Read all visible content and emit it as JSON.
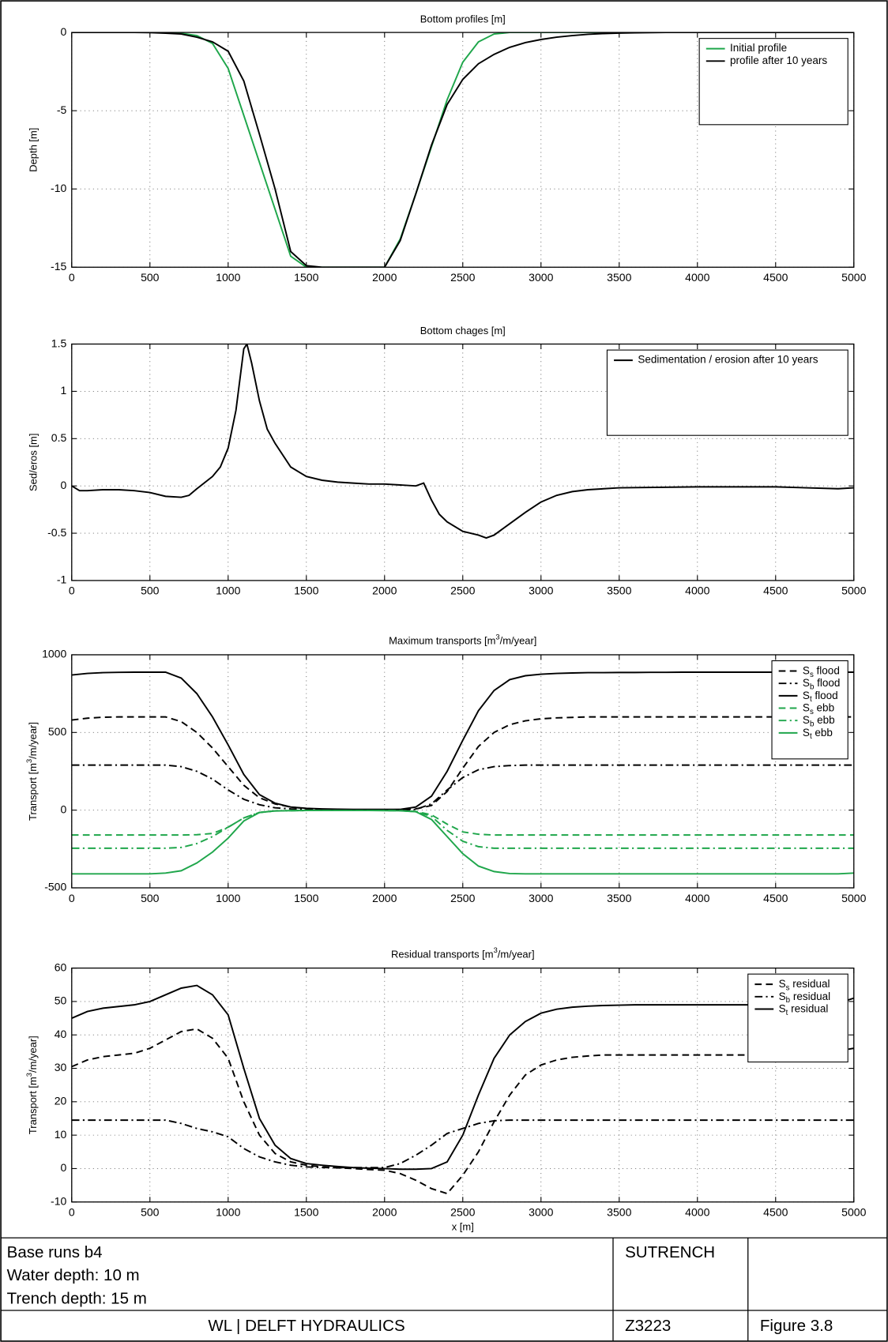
{
  "chart_data": [
    {
      "type": "line",
      "title": "Bottom profiles [m]",
      "ylabel": "Depth [m]",
      "x": [
        0,
        100,
        200,
        300,
        400,
        500,
        600,
        700,
        800,
        900,
        1000,
        1100,
        1200,
        1300,
        1400,
        1500,
        1600,
        1700,
        1800,
        1900,
        2000,
        2100,
        2200,
        2300,
        2400,
        2500,
        2600,
        2700,
        2800,
        2900,
        3000,
        3100,
        3200,
        3300,
        3400,
        3500,
        3600,
        3700,
        3800,
        3900,
        4000,
        4100,
        4200,
        4300,
        4400,
        4500,
        4600,
        4700,
        4800,
        4900,
        5000
      ],
      "series": [
        {
          "name": "Initial profile",
          "color": "#1fa64b",
          "linestyle": "solid",
          "values": [
            0,
            0,
            0,
            0,
            0,
            0,
            0,
            -0.05,
            -0.2,
            -0.7,
            -2.3,
            -5.3,
            -8.3,
            -11.3,
            -14.3,
            -15,
            -15,
            -15,
            -15,
            -15,
            -15,
            -13.2,
            -10.3,
            -7.3,
            -4.3,
            -1.9,
            -0.6,
            -0.1,
            0,
            0,
            0,
            0,
            0,
            0,
            0,
            0,
            0,
            0,
            0,
            0,
            0,
            0,
            0,
            0,
            0,
            0,
            0,
            0,
            0,
            0,
            0
          ]
        },
        {
          "name": "profile after 10 years",
          "color": "#000000",
          "linestyle": "solid",
          "values": [
            0,
            0,
            0,
            0,
            0,
            -0.01,
            -0.05,
            -0.1,
            -0.3,
            -0.6,
            -1.2,
            -3.1,
            -6.5,
            -10,
            -14,
            -14.9,
            -15,
            -15,
            -15,
            -15,
            -15,
            -13.3,
            -10.3,
            -7.2,
            -4.6,
            -3.0,
            -2.0,
            -1.4,
            -0.95,
            -0.65,
            -0.45,
            -0.3,
            -0.2,
            -0.12,
            -0.07,
            -0.04,
            -0.02,
            -0.01,
            0,
            0,
            0,
            0,
            0,
            0,
            0,
            0,
            0,
            0,
            0,
            0,
            0
          ]
        }
      ],
      "xlim": [
        0,
        5000
      ],
      "ylim": [
        -15,
        0
      ],
      "xticks": [
        0,
        500,
        1000,
        1500,
        2000,
        2500,
        3000,
        3500,
        4000,
        4500,
        5000
      ],
      "yticks": [
        -15,
        -10,
        -5,
        0
      ],
      "grid": true,
      "legend": "upper right"
    },
    {
      "type": "line",
      "title": "Bottom chages [m]",
      "ylabel": "Sed/eros [m]",
      "x": [
        0,
        50,
        100,
        200,
        300,
        400,
        500,
        600,
        700,
        750,
        800,
        900,
        950,
        1000,
        1050,
        1100,
        1120,
        1150,
        1200,
        1250,
        1300,
        1400,
        1500,
        1600,
        1700,
        1800,
        1900,
        2000,
        2100,
        2200,
        2250,
        2300,
        2350,
        2400,
        2500,
        2600,
        2650,
        2700,
        2800,
        2900,
        3000,
        3100,
        3200,
        3300,
        3500,
        4000,
        4500,
        4900,
        5000
      ],
      "series": [
        {
          "name": "Sedimentation / erosion after 10 years",
          "color": "#000000",
          "linestyle": "solid",
          "values": [
            0,
            -0.05,
            -0.05,
            -0.04,
            -0.04,
            -0.05,
            -0.07,
            -0.11,
            -0.12,
            -0.1,
            -0.03,
            0.1,
            0.2,
            0.4,
            0.8,
            1.45,
            1.5,
            1.3,
            0.9,
            0.6,
            0.45,
            0.2,
            0.1,
            0.06,
            0.04,
            0.03,
            0.02,
            0.02,
            0.01,
            0,
            0.03,
            -0.15,
            -0.3,
            -0.38,
            -0.48,
            -0.52,
            -0.55,
            -0.52,
            -0.4,
            -0.28,
            -0.17,
            -0.1,
            -0.06,
            -0.04,
            -0.02,
            -0.01,
            -0.01,
            -0.03,
            -0.02
          ]
        }
      ],
      "xlim": [
        0,
        5000
      ],
      "ylim": [
        -1,
        1.5
      ],
      "xticks": [
        0,
        500,
        1000,
        1500,
        2000,
        2500,
        3000,
        3500,
        4000,
        4500,
        5000
      ],
      "yticks": [
        -1,
        -0.5,
        0,
        0.5,
        1,
        1.5
      ],
      "grid": true,
      "legend": "upper right"
    },
    {
      "type": "line",
      "title": "Maximum transports [m3/m/year]",
      "ylabel": "Transport [m3/m/year]",
      "x": [
        0,
        100,
        200,
        300,
        400,
        500,
        600,
        700,
        800,
        900,
        1000,
        1100,
        1200,
        1300,
        1400,
        1500,
        1600,
        1700,
        1800,
        1900,
        2000,
        2100,
        2200,
        2300,
        2400,
        2500,
        2600,
        2700,
        2800,
        2900,
        3000,
        3100,
        3200,
        3300,
        3400,
        3500,
        3600,
        3700,
        3800,
        3900,
        4000,
        4100,
        4200,
        4300,
        4400,
        4500,
        4600,
        4700,
        4800,
        4900,
        5000
      ],
      "series": [
        {
          "name": "Ss flood",
          "color": "#000000",
          "linestyle": "dashed",
          "values": [
            580,
            592,
            598,
            600,
            600,
            600,
            600,
            570,
            500,
            400,
            280,
            160,
            80,
            40,
            20,
            10,
            6,
            4,
            3,
            3,
            3,
            4,
            8,
            30,
            120,
            270,
            410,
            500,
            550,
            575,
            588,
            594,
            597,
            600,
            600,
            600,
            600,
            600,
            600,
            600,
            600,
            600,
            600,
            600,
            600,
            600,
            600,
            600,
            600,
            600,
            600
          ]
        },
        {
          "name": "Sb flood",
          "color": "#000000",
          "linestyle": "dashdot",
          "values": [
            290,
            290,
            290,
            290,
            290,
            290,
            290,
            280,
            250,
            200,
            130,
            70,
            35,
            15,
            8,
            5,
            3,
            2,
            2,
            2,
            2,
            2,
            5,
            40,
            130,
            210,
            260,
            280,
            287,
            290,
            290,
            290,
            290,
            290,
            290,
            290,
            290,
            290,
            290,
            290,
            290,
            290,
            290,
            290,
            290,
            290,
            290,
            290,
            290,
            290,
            290
          ]
        },
        {
          "name": "St flood",
          "color": "#000000",
          "linestyle": "solid",
          "values": [
            870,
            880,
            885,
            887,
            888,
            888,
            888,
            850,
            750,
            600,
            420,
            230,
            100,
            45,
            20,
            12,
            8,
            6,
            5,
            5,
            5,
            5,
            20,
            90,
            250,
            450,
            640,
            770,
            840,
            865,
            875,
            880,
            883,
            885,
            885,
            886,
            886,
            887,
            887,
            888,
            888,
            888,
            888,
            888,
            888,
            888,
            888,
            888,
            888,
            888,
            888
          ]
        },
        {
          "name": "Ss ebb",
          "color": "#1fa64b",
          "linestyle": "dashed",
          "values": [
            -160,
            -160,
            -160,
            -160,
            -160,
            -160,
            -160,
            -160,
            -158,
            -150,
            -110,
            -50,
            -15,
            -5,
            -3,
            -2,
            -2,
            -2,
            -2,
            -2,
            -2,
            -3,
            -8,
            -30,
            -90,
            -140,
            -155,
            -160,
            -160,
            -160,
            -160,
            -160,
            -160,
            -160,
            -160,
            -160,
            -160,
            -160,
            -160,
            -160,
            -160,
            -160,
            -160,
            -160,
            -160,
            -160,
            -160,
            -160,
            -160,
            -160,
            -160
          ]
        },
        {
          "name": "Sb ebb",
          "color": "#1fa64b",
          "linestyle": "dashdot",
          "values": [
            -245,
            -245,
            -245,
            -245,
            -245,
            -245,
            -245,
            -240,
            -215,
            -170,
            -110,
            -50,
            -15,
            -5,
            -3,
            -2,
            -2,
            -2,
            -2,
            -2,
            -2,
            -3,
            -10,
            -40,
            -130,
            -200,
            -235,
            -245,
            -245,
            -245,
            -245,
            -245,
            -245,
            -245,
            -245,
            -245,
            -245,
            -245,
            -245,
            -245,
            -245,
            -245,
            -245,
            -245,
            -245,
            -245,
            -245,
            -245,
            -245,
            -245,
            -245
          ]
        },
        {
          "name": "St ebb",
          "color": "#1fa64b",
          "linestyle": "solid",
          "values": [
            -410,
            -410,
            -410,
            -410,
            -410,
            -410,
            -405,
            -390,
            -340,
            -270,
            -180,
            -70,
            -15,
            -5,
            -3,
            -2,
            -2,
            -2,
            -2,
            -2,
            -3,
            -4,
            -10,
            -60,
            -170,
            -280,
            -360,
            -395,
            -408,
            -410,
            -410,
            -410,
            -410,
            -410,
            -410,
            -410,
            -410,
            -410,
            -410,
            -410,
            -410,
            -410,
            -410,
            -410,
            -410,
            -410,
            -410,
            -410,
            -410,
            -410,
            -405
          ]
        }
      ],
      "xlim": [
        0,
        5000
      ],
      "ylim": [
        -500,
        1000
      ],
      "xticks": [
        0,
        500,
        1000,
        1500,
        2000,
        2500,
        3000,
        3500,
        4000,
        4500,
        5000
      ],
      "yticks": [
        -500,
        0,
        500,
        1000
      ],
      "grid": true,
      "legend": "upper right"
    },
    {
      "type": "line",
      "title": "Residual transports [m3/m/year]",
      "ylabel": "Transport [m3/m/year]",
      "xlabel": "x [m]",
      "x": [
        0,
        100,
        200,
        300,
        400,
        500,
        600,
        700,
        800,
        900,
        1000,
        1100,
        1200,
        1300,
        1400,
        1500,
        1600,
        1700,
        1800,
        1900,
        2000,
        2100,
        2200,
        2300,
        2400,
        2500,
        2600,
        2700,
        2800,
        2900,
        3000,
        3100,
        3200,
        3300,
        3400,
        3500,
        3600,
        3700,
        3800,
        3900,
        4000,
        4100,
        4200,
        4300,
        4400,
        4500,
        4600,
        4700,
        4800,
        4900,
        5000
      ],
      "series": [
        {
          "name": "Ss residual",
          "color": "#000000",
          "linestyle": "dashed",
          "values": [
            30.5,
            32.5,
            33.5,
            34,
            34.5,
            36,
            38.5,
            41,
            41.8,
            39,
            33,
            20,
            10,
            4.5,
            2,
            1,
            0.5,
            0.2,
            0,
            -0.3,
            -0.5,
            -1.5,
            -3.5,
            -6,
            -7.5,
            -2,
            5,
            14,
            22,
            28,
            31,
            32.5,
            33.3,
            33.7,
            34,
            34,
            34,
            34,
            34,
            34,
            34,
            34,
            34,
            34,
            34,
            34,
            34.3,
            34.5,
            34.8,
            35.2,
            36
          ]
        },
        {
          "name": "Sb residual",
          "color": "#000000",
          "linestyle": "dashdot",
          "values": [
            14.5,
            14.5,
            14.5,
            14.5,
            14.5,
            14.5,
            14.5,
            13.5,
            12,
            11,
            9.5,
            6,
            3.5,
            2,
            1,
            0.5,
            0.3,
            0.3,
            0.3,
            0.3,
            0.3,
            1.5,
            4,
            7,
            10.5,
            12,
            13.5,
            14.3,
            14.5,
            14.5,
            14.5,
            14.5,
            14.5,
            14.5,
            14.5,
            14.5,
            14.5,
            14.5,
            14.5,
            14.5,
            14.5,
            14.5,
            14.5,
            14.5,
            14.5,
            14.5,
            14.5,
            14.5,
            14.5,
            14.5,
            14.5
          ]
        },
        {
          "name": "St residual",
          "color": "#000000",
          "linestyle": "solid",
          "values": [
            45,
            47,
            48,
            48.5,
            49,
            50,
            52,
            54,
            54.8,
            52,
            46,
            30,
            15,
            7,
            3,
            1.5,
            1,
            0.6,
            0.3,
            0.1,
            0,
            -0.2,
            -0.2,
            0,
            2,
            10,
            22,
            33,
            40,
            44,
            46.5,
            47.7,
            48.3,
            48.6,
            48.8,
            48.9,
            49,
            49,
            49,
            49,
            49,
            49,
            49,
            49,
            49,
            49,
            49,
            49,
            49,
            49.5,
            51
          ]
        }
      ],
      "xlim": [
        0,
        5000
      ],
      "ylim": [
        -10,
        60
      ],
      "xticks": [
        0,
        500,
        1000,
        1500,
        2000,
        2500,
        3000,
        3500,
        4000,
        4500,
        5000
      ],
      "yticks": [
        -10,
        0,
        10,
        20,
        30,
        40,
        50,
        60
      ],
      "grid": true,
      "legend": "upper right"
    }
  ],
  "title_block": {
    "lines": [
      "Base runs b4",
      "Water depth: 10 m",
      "Trench depth: 15 m"
    ],
    "program": "SUTRENCH",
    "company": "WL | DELFT HYDRAULICS",
    "project": "Z3223",
    "figure": "Figure 3.8"
  }
}
